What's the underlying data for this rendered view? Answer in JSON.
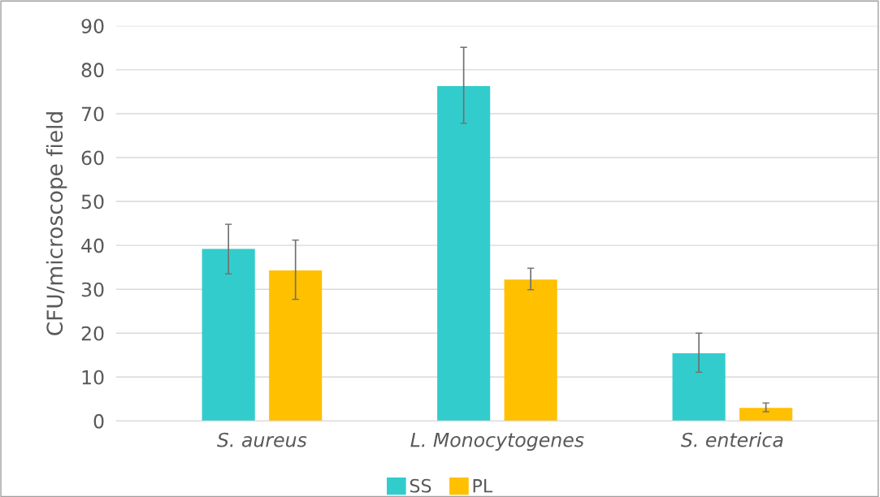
{
  "chart_data": {
    "type": "bar",
    "ylabel": "CFU/microscope field",
    "categories": [
      "S. aureus",
      "L. Monocytogenes",
      "S. enterica"
    ],
    "series": [
      {
        "name": "SS",
        "color": "#33cccc",
        "values": [
          39.2,
          76.3,
          15.4
        ],
        "errors": [
          [
            33.5,
            44.8
          ],
          [
            67.8,
            85.1
          ],
          [
            11.1,
            20.0
          ]
        ]
      },
      {
        "name": "PL",
        "color": "#ffc000",
        "values": [
          34.3,
          32.2,
          3.0
        ],
        "errors": [
          [
            27.7,
            41.2
          ],
          [
            29.9,
            34.8
          ],
          [
            2.1,
            4.1
          ]
        ]
      }
    ],
    "ylim": [
      0,
      90
    ],
    "yticks": [
      0,
      10,
      20,
      30,
      40,
      50,
      60,
      70,
      80,
      90
    ],
    "grid": "y",
    "legend": "bottom"
  }
}
